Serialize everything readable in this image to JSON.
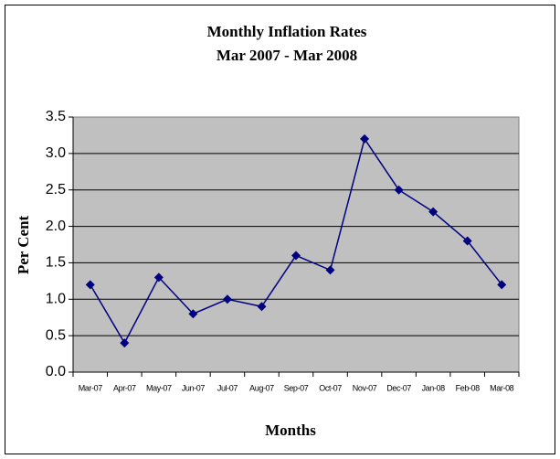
{
  "chart_data": {
    "type": "line",
    "title": "Monthly Inflation Rates",
    "subtitle": "Mar 2007 - Mar 2008",
    "y_label": "Per Cent",
    "x_label": "Months",
    "categories": [
      "Mar-07",
      "Apr-07",
      "May-07",
      "Jun-07",
      "Jul-07",
      "Aug-07",
      "Sep-07",
      "Oct-07",
      "Nov-07",
      "Dec-07",
      "Jan-08",
      "Feb-08",
      "Mar-08"
    ],
    "values": [
      1.2,
      0.4,
      1.3,
      0.8,
      1.0,
      0.9,
      1.6,
      1.4,
      3.2,
      2.5,
      2.2,
      1.8,
      1.2
    ],
    "color": "#000080",
    "ylim": [
      0,
      3.5
    ],
    "yticks": [
      {
        "value": 0,
        "label": "0.0"
      },
      0.5,
      {
        "value": 1,
        "label": "1.0"
      },
      1.5,
      {
        "value": 2,
        "label": "2.0"
      },
      2.5,
      {
        "value": 3,
        "label": "3.0"
      },
      3.5
    ],
    "grid": true
  }
}
